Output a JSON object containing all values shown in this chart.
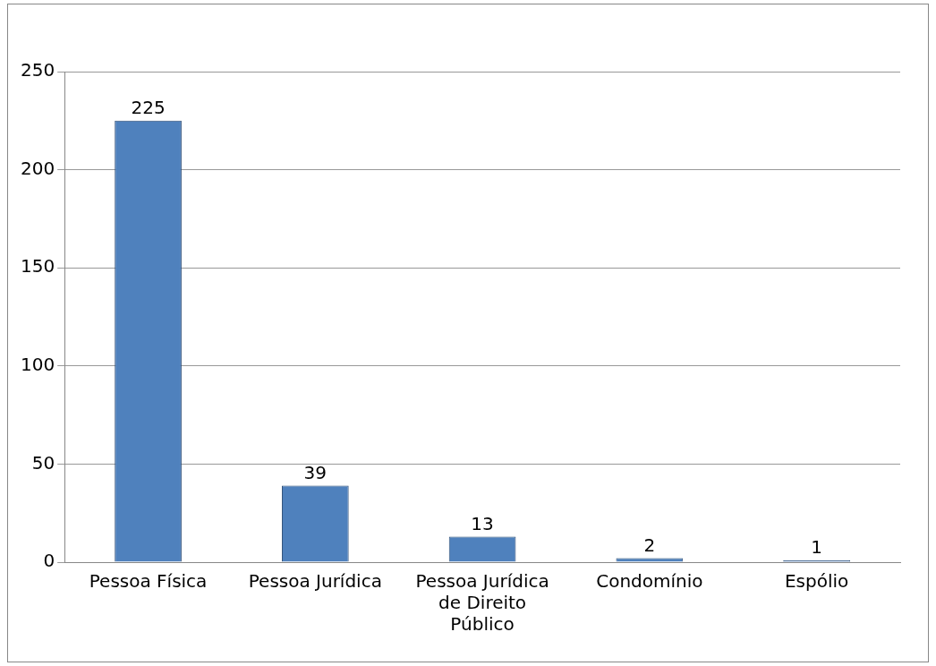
{
  "chart_data": {
    "type": "bar",
    "categories": [
      "Pessoa Física",
      "Pessoa Jurídica",
      "Pessoa Jurídica de Direito Público",
      "Condomínio",
      "Espólio"
    ],
    "values": [
      225,
      39,
      13,
      2,
      1
    ],
    "color": "#4f81bd",
    "ylim": [
      0,
      250
    ],
    "yticks": [
      0,
      50,
      100,
      150,
      200,
      250
    ],
    "grid": "y",
    "data_labels": true,
    "legend": false
  }
}
